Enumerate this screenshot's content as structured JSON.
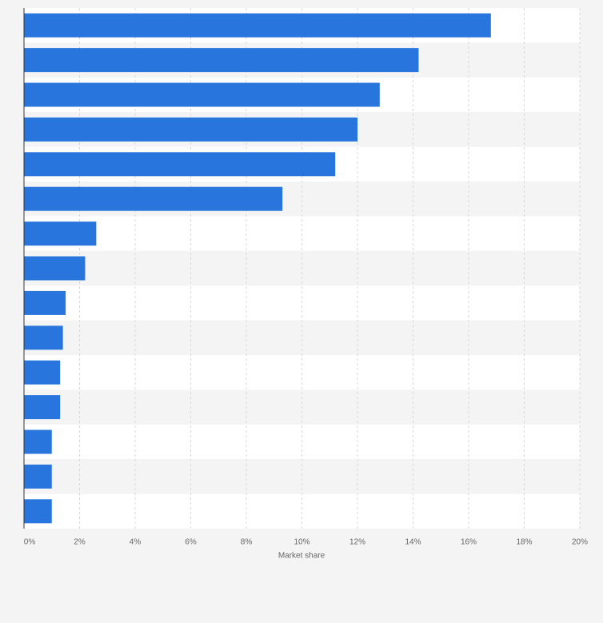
{
  "chart_data": {
    "type": "bar",
    "orientation": "horizontal",
    "categories": [
      null,
      null,
      null,
      null,
      null,
      null,
      null,
      null,
      null,
      null,
      null,
      null,
      null,
      null,
      null
    ],
    "values": [
      16.8,
      14.2,
      12.8,
      12.0,
      11.2,
      9.3,
      2.6,
      2.2,
      1.5,
      1.4,
      1.3,
      1.3,
      1.0,
      1.0,
      1.0
    ],
    "color": "#2876dd",
    "xlabel": "Market share",
    "xlim": [
      0,
      20
    ],
    "xticks": [
      {
        "value": 0,
        "label": "0%"
      },
      {
        "value": 2,
        "label": "2%"
      },
      {
        "value": 4,
        "label": "4%"
      },
      {
        "value": 6,
        "label": "6%"
      },
      {
        "value": 8,
        "label": "8%"
      },
      {
        "value": 10,
        "label": "10%"
      },
      {
        "value": 12,
        "label": "12%"
      },
      {
        "value": 14,
        "label": "14%"
      },
      {
        "value": 16,
        "label": "16%"
      },
      {
        "value": 18,
        "label": "18%"
      },
      {
        "value": 20,
        "label": "20%"
      }
    ],
    "grid": true
  }
}
